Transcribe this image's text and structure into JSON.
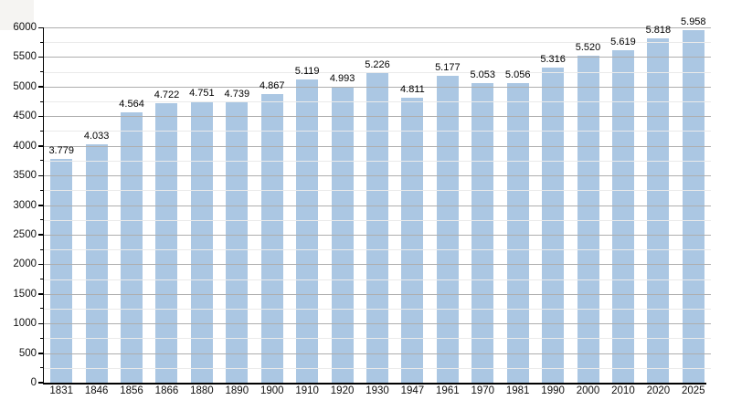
{
  "chart_data": {
    "type": "bar",
    "title": "",
    "xlabel": "",
    "ylabel": "",
    "categories": [
      "1831",
      "1846",
      "1856",
      "1866",
      "1880",
      "1890",
      "1900",
      "1910",
      "1920",
      "1930",
      "1947",
      "1961",
      "1970",
      "1981",
      "1990",
      "2000",
      "2010",
      "2020",
      "2025"
    ],
    "values": [
      3779,
      4033,
      4564,
      4722,
      4751,
      4739,
      4867,
      5119,
      4993,
      5226,
      4811,
      5177,
      5053,
      5056,
      5316,
      5520,
      5619,
      5818,
      5958
    ],
    "value_labels": [
      "3.779",
      "4.033",
      "4.564",
      "4.722",
      "4.751",
      "4.739",
      "4.867",
      "5.119",
      "4.993",
      "5.226",
      "4.811",
      "5.177",
      "5.053",
      "5.056",
      "5.316",
      "5.520",
      "5.619",
      "5.818",
      "5.958"
    ],
    "y_tick_labels": [
      "0",
      "500",
      "1000",
      "1500",
      "2000",
      "2500",
      "3000",
      "3500",
      "4000",
      "4500",
      "5000",
      "5500",
      "6000"
    ],
    "ylim": [
      0,
      6000
    ],
    "y_major_step": 500,
    "y_minor_step": 250,
    "grid": "horizontal major and minor, drawn over bars",
    "legend_position": "none",
    "colors": {
      "bar": "#abc7e3",
      "grid_major": "#aeaeae",
      "grid_minor": "#eaeaea",
      "axis": "#000000",
      "text": "#111111",
      "background": "#ffffff",
      "corner_box": "#f5f4f2"
    }
  }
}
